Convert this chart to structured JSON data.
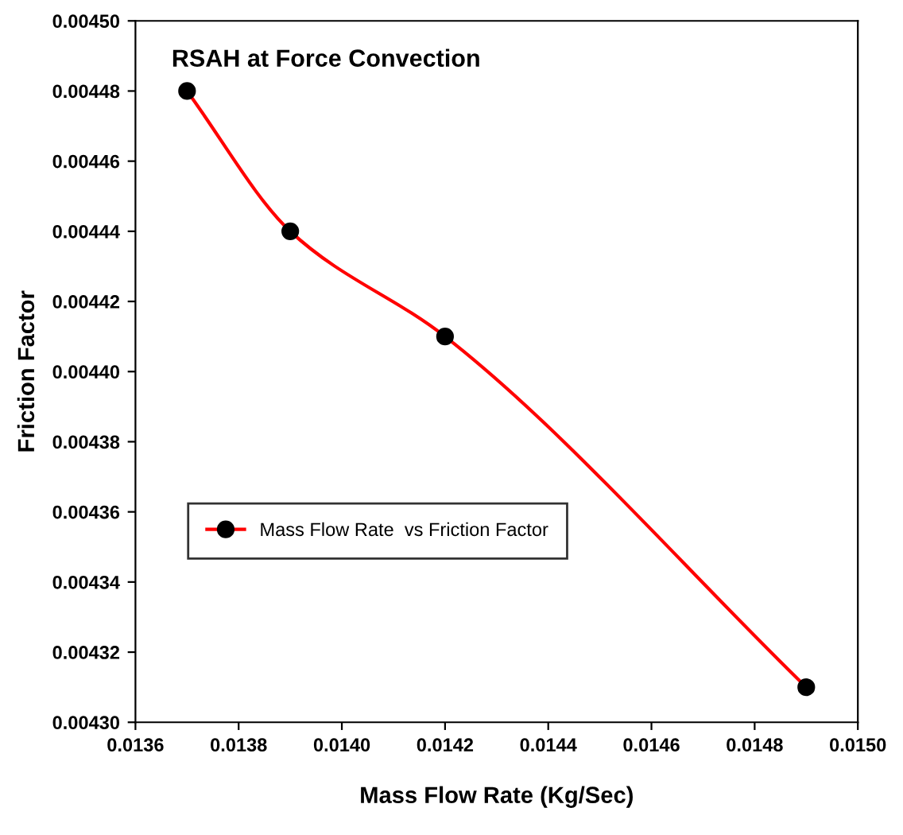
{
  "chart_data": {
    "type": "line",
    "title": "RSAH at Force Convection",
    "xlabel": "Mass Flow Rate (Kg/Sec)",
    "ylabel": "Friction Factor",
    "x": [
      0.0137,
      0.0139,
      0.0142,
      0.0149
    ],
    "series": [
      {
        "name": "Mass Flow Rate  vs Friction Factor",
        "color": "#ff0000",
        "values": [
          0.00448,
          0.00444,
          0.00441,
          0.00431
        ]
      }
    ],
    "xlim": [
      0.0136,
      0.015
    ],
    "xticks": [
      0.0136,
      0.0138,
      {
        "value": 0.014,
        "label": "0.0140"
      },
      0.0142,
      0.0144,
      0.0146,
      0.0148,
      {
        "value": 0.015,
        "label": "0.0150"
      }
    ],
    "ylim": [
      0.0043,
      0.0045
    ],
    "yticks": [
      {
        "value": 0.0043,
        "label": "0.00430"
      },
      {
        "value": 0.00432,
        "label": "0.00432"
      },
      {
        "value": 0.00434,
        "label": "0.00434"
      },
      {
        "value": 0.00436,
        "label": "0.00436"
      },
      {
        "value": 0.00438,
        "label": "0.00438"
      },
      {
        "value": 0.0044,
        "label": "0.00440"
      },
      {
        "value": 0.00442,
        "label": "0.00442"
      },
      {
        "value": 0.00444,
        "label": "0.00444"
      },
      {
        "value": 0.00446,
        "label": "0.00446"
      },
      {
        "value": 0.00448,
        "label": "0.00448"
      },
      {
        "value": 0.0045,
        "label": "0.00450"
      }
    ],
    "grid": false,
    "legend": "bottom left",
    "marker": "circle",
    "line_style": "solid"
  }
}
